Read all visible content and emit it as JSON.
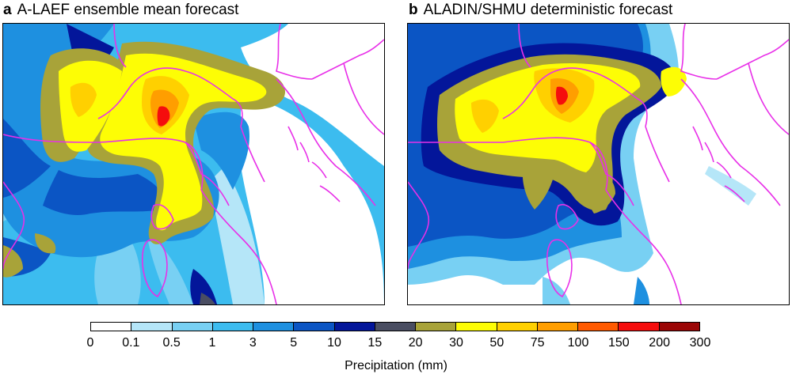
{
  "panels": [
    {
      "letter": "a",
      "title": "A-LAEF ensemble mean forecast"
    },
    {
      "letter": "b",
      "title": "ALADIN/SHMU deterministic forecast"
    }
  ],
  "colorbar": {
    "label": "Precipitation (mm)",
    "ticks": [
      "0",
      "0.1",
      "0.5",
      "1",
      "3",
      "5",
      "10",
      "15",
      "20",
      "30",
      "50",
      "75",
      "100",
      "150",
      "200",
      "300"
    ],
    "colors": [
      "#ffffff",
      "#b5e6f8",
      "#78d0f3",
      "#3cbcef",
      "#1e90e0",
      "#0b55c4",
      "#03169a",
      "#4a4e62",
      "#a8a339",
      "#fdfd05",
      "#ffd000",
      "#ff9e00",
      "#ff5a00",
      "#f50d0d",
      "#9b0606"
    ]
  },
  "boundary_color": "#e830e8"
}
